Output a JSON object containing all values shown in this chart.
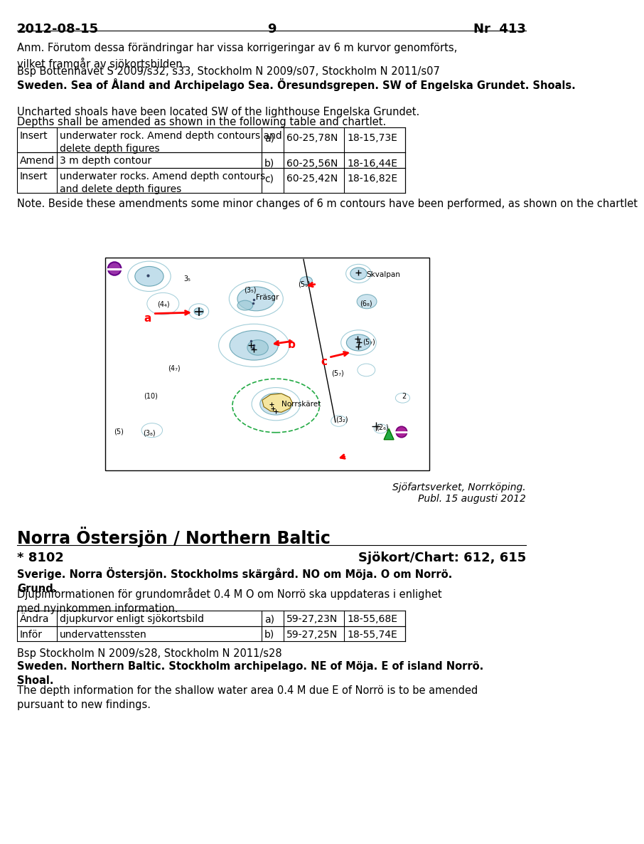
{
  "header_date": "2012-08-15",
  "header_page": "9",
  "header_nr": "Nr  413",
  "background": "#ffffff",
  "anm_text": "Anm. Förutom dessa förändringar har vissa korrigeringar av 6 m kurvor genomförts,\nvilket framgår av sjökortsbilden.",
  "bsp_text": "Bsp Bottenhavet S 2009/s32, s33, Stockholm N 2009/s07, Stockholm N 2011/s07",
  "bold_heading": "Sweden. Sea of Åland and Archipelago Sea. Öresundsgrepen. SW of Engelska Grundet. Shoals.",
  "desc1": "Uncharted shoals have been located SW of the lighthouse Engelska Grundet.",
  "desc2": "Depths shall be amended as shown in the following table and chartlet.",
  "table1_rows": [
    [
      "Insert",
      "underwater rock. Amend depth contours and\ndelete depth figures",
      "a)",
      "60-25,78N",
      "18-15,73E"
    ],
    [
      "Amend",
      "3 m depth contour",
      "b)",
      "60-25,56N",
      "18-16,44E"
    ],
    [
      "Insert",
      "underwater rocks. Amend depth contours\nand delete depth figures",
      "c)",
      "60-25,42N",
      "18-16,82E"
    ]
  ],
  "note_text": "Note. Beside these amendments some minor changes of 6 m contours have been performed, as shown on the chartlet",
  "publisher": "Sjöfartsverket, Norrköping.",
  "publ_date": "Publ. 15 augusti 2012",
  "section2_heading": "Norra Östersjön / Northern Baltic",
  "chart_num": "* 8102",
  "chart_ref": "Sjökort/Chart: 612, 615",
  "bold_heading2": "Sverige. Norra Östersjön. Stockholms skärgård. NO om Möja. O om Norrö.\nGrund.",
  "desc3": "Djupinformationen för grundområdet 0.4 M O om Norrö ska uppdateras i enlighet\nmed nyinkommen information.",
  "table2_rows": [
    [
      "Ändra",
      "djupkurvor enligt sjökortsbild",
      "a)",
      "59-27,23N",
      "18-55,68E"
    ],
    [
      "Inför",
      "undervattenssten",
      "b)",
      "59-27,25N",
      "18-55,74E"
    ]
  ],
  "bsp2_text": "Bsp Stockholm N 2009/s28, Stockholm N 2011/s28",
  "bold_heading3": "Sweden. Northern Baltic. Stockholm archipelago. NE of Möja. E of island Norrö.\nShoal.",
  "desc4": "The depth information for the shallow water area 0.4 M due E of Norrö is to be amended\npursuant to new findings."
}
